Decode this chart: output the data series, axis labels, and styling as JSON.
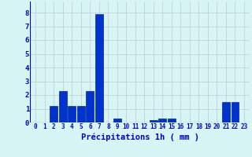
{
  "values": [
    0,
    0,
    1.2,
    2.3,
    1.2,
    1.2,
    2.3,
    7.9,
    0,
    0.3,
    0,
    0,
    0,
    0.2,
    0.3,
    0.3,
    0,
    0,
    0,
    0,
    0,
    1.5,
    1.5,
    0
  ],
  "categories": [
    0,
    1,
    2,
    3,
    4,
    5,
    6,
    7,
    8,
    9,
    10,
    11,
    12,
    13,
    14,
    15,
    16,
    17,
    18,
    19,
    20,
    21,
    22,
    23
  ],
  "xlabel": "Précipitations 1h ( mm )",
  "ylim": [
    0,
    8.8
  ],
  "yticks": [
    0,
    1,
    2,
    3,
    4,
    5,
    6,
    7,
    8
  ],
  "bar_color": "#0033cc",
  "bar_edge_color": "#0022aa",
  "background_color": "#d8f5f5",
  "grid_color": "#c0c8d0",
  "xlabel_color": "#0000cc",
  "tick_color": "#0000cc",
  "xlabel_fontsize": 7.5,
  "tick_fontsize": 5.5,
  "ytick_fontsize": 6.5
}
